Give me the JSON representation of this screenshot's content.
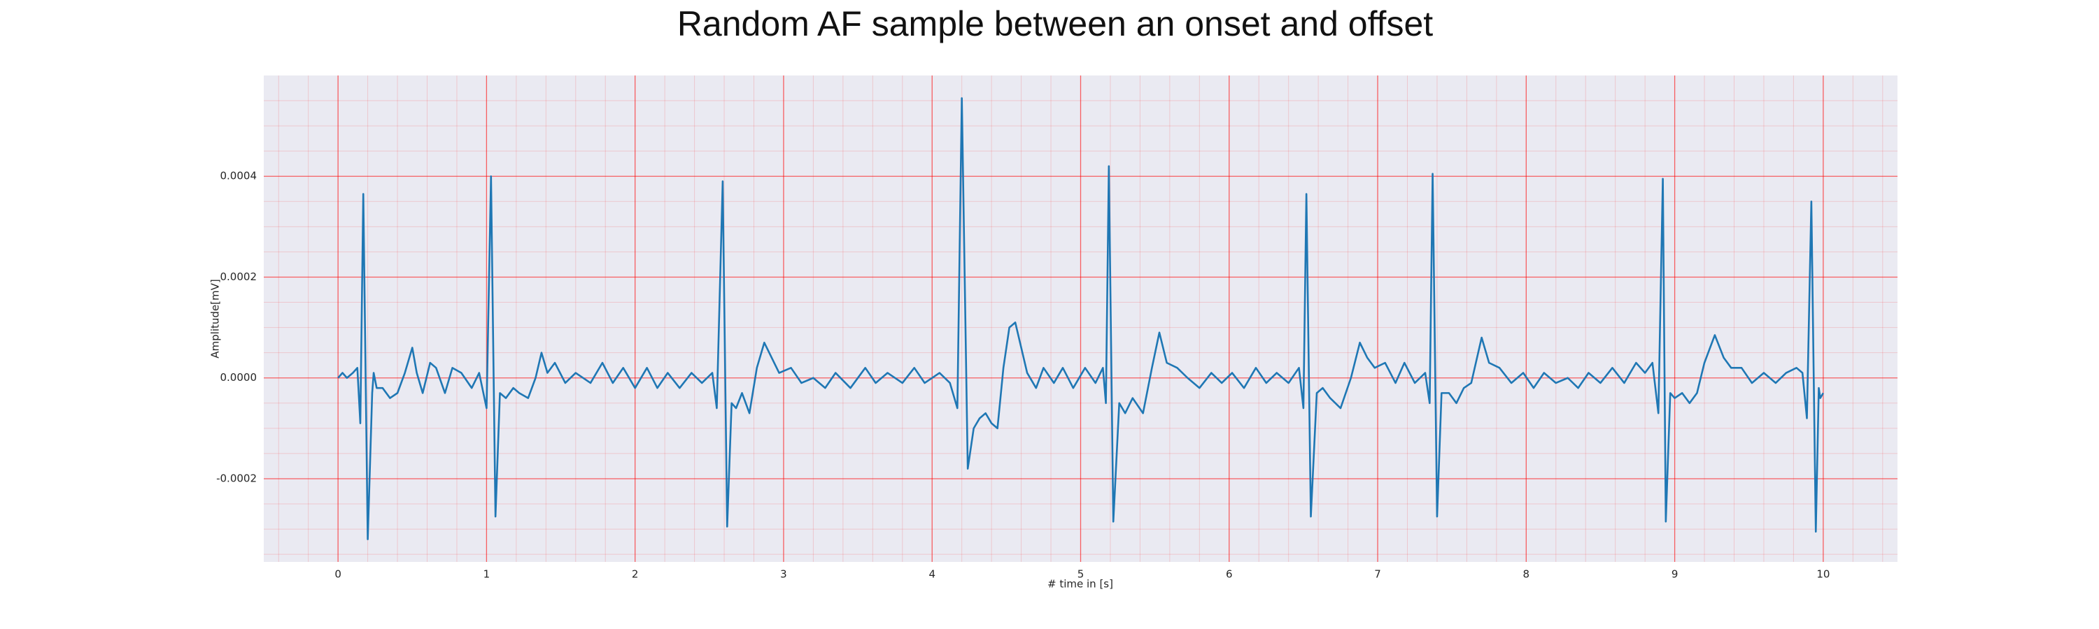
{
  "chart_data": {
    "type": "line",
    "title": "Random AF sample between an onset and offset",
    "xlabel": "# time in [s]",
    "ylabel": "Amplitude[mV]",
    "color": "#1f77b4",
    "grid": true,
    "grid_color": "#ff0000",
    "minor_grid": {
      "x": 5,
      "y": 4
    },
    "xlim": [
      -0.5,
      10.5
    ],
    "ylim": [
      -0.000365,
      0.0006
    ],
    "xticks": [
      0,
      1,
      2,
      3,
      4,
      5,
      6,
      7,
      8,
      9,
      10
    ],
    "yticks": [
      -0.0002,
      {
        "value": 0,
        "label": "0.0000"
      },
      0.0002,
      0.0004
    ],
    "x": [
      0.0,
      0.03,
      0.06,
      0.1,
      0.13,
      0.15,
      0.17,
      0.2,
      0.23,
      0.24,
      0.26,
      0.3,
      0.35,
      0.4,
      0.45,
      0.5,
      0.53,
      0.57,
      0.62,
      0.66,
      0.72,
      0.77,
      0.83,
      0.9,
      0.95,
      1.0,
      1.03,
      1.06,
      1.09,
      1.13,
      1.18,
      1.22,
      1.28,
      1.33,
      1.37,
      1.41,
      1.46,
      1.53,
      1.6,
      1.7,
      1.78,
      1.85,
      1.92,
      2.0,
      2.08,
      2.15,
      2.22,
      2.3,
      2.38,
      2.45,
      2.52,
      2.55,
      2.59,
      2.62,
      2.65,
      2.68,
      2.72,
      2.77,
      2.82,
      2.87,
      2.92,
      2.97,
      3.05,
      3.12,
      3.2,
      3.28,
      3.35,
      3.45,
      3.55,
      3.62,
      3.7,
      3.8,
      3.88,
      3.95,
      4.05,
      4.12,
      4.17,
      4.2,
      4.24,
      4.28,
      4.32,
      4.36,
      4.4,
      4.44,
      4.48,
      4.52,
      4.56,
      4.6,
      4.64,
      4.7,
      4.75,
      4.82,
      4.88,
      4.95,
      5.03,
      5.1,
      5.15,
      5.17,
      5.19,
      5.22,
      5.26,
      5.3,
      5.35,
      5.42,
      5.48,
      5.53,
      5.58,
      5.65,
      5.72,
      5.8,
      5.88,
      5.95,
      6.02,
      6.1,
      6.18,
      6.25,
      6.32,
      6.4,
      6.47,
      6.5,
      6.52,
      6.55,
      6.59,
      6.63,
      6.68,
      6.75,
      6.82,
      6.88,
      6.93,
      6.98,
      7.05,
      7.12,
      7.18,
      7.25,
      7.32,
      7.35,
      7.37,
      7.4,
      7.43,
      7.48,
      7.53,
      7.58,
      7.63,
      7.7,
      7.75,
      7.82,
      7.9,
      7.98,
      8.05,
      8.12,
      8.2,
      8.28,
      8.35,
      8.42,
      8.5,
      8.58,
      8.66,
      8.74,
      8.8,
      8.85,
      8.89,
      8.92,
      8.94,
      8.97,
      9.0,
      9.05,
      9.1,
      9.15,
      9.2,
      9.27,
      9.33,
      9.38,
      9.45,
      9.52,
      9.6,
      9.68,
      9.75,
      9.82,
      9.86,
      9.89,
      9.92,
      9.95,
      9.97,
      9.98,
      10.0
    ],
    "values": [
      0,
      1e-05,
      0,
      1e-05,
      2e-05,
      -9e-05,
      0.000365,
      -0.00032,
      -3e-05,
      1e-05,
      -2e-05,
      -2e-05,
      -4e-05,
      -3e-05,
      1e-05,
      6e-05,
      1e-05,
      -3e-05,
      3e-05,
      2e-05,
      -3e-05,
      2e-05,
      1e-05,
      -2e-05,
      1e-05,
      -6e-05,
      0.0004,
      -0.000275,
      -3e-05,
      -4e-05,
      -2e-05,
      -3e-05,
      -4e-05,
      0,
      5e-05,
      1e-05,
      3e-05,
      -1e-05,
      1e-05,
      -1e-05,
      3e-05,
      -1e-05,
      2e-05,
      -2e-05,
      2e-05,
      -2e-05,
      1e-05,
      -2e-05,
      1e-05,
      -1e-05,
      1e-05,
      -6e-05,
      0.00039,
      -0.000295,
      -5e-05,
      -6e-05,
      -3e-05,
      -7e-05,
      2e-05,
      7e-05,
      4e-05,
      1e-05,
      2e-05,
      -1e-05,
      0,
      -2e-05,
      1e-05,
      -2e-05,
      2e-05,
      -1e-05,
      1e-05,
      -1e-05,
      2e-05,
      -1e-05,
      1e-05,
      -1e-05,
      -6e-05,
      0.000555,
      -0.00018,
      -0.0001,
      -8e-05,
      -7e-05,
      -9e-05,
      -0.0001,
      2e-05,
      0.0001,
      0.00011,
      6e-05,
      1e-05,
      -2e-05,
      2e-05,
      -1e-05,
      2e-05,
      -2e-05,
      2e-05,
      -1e-05,
      2e-05,
      -5e-05,
      0.00042,
      -0.000285,
      -5e-05,
      -7e-05,
      -4e-05,
      -7e-05,
      2e-05,
      9e-05,
      3e-05,
      2e-05,
      0,
      -2e-05,
      1e-05,
      -1e-05,
      1e-05,
      -2e-05,
      2e-05,
      -1e-05,
      1e-05,
      -1e-05,
      2e-05,
      -6e-05,
      0.000365,
      -0.000275,
      -3e-05,
      -2e-05,
      -4e-05,
      -6e-05,
      0,
      7e-05,
      4e-05,
      2e-05,
      3e-05,
      -1e-05,
      3e-05,
      -1e-05,
      1e-05,
      -5e-05,
      0.000405,
      -0.000275,
      -3e-05,
      -3e-05,
      -5e-05,
      -2e-05,
      -1e-05,
      8e-05,
      3e-05,
      2e-05,
      -1e-05,
      1e-05,
      -2e-05,
      1e-05,
      -1e-05,
      0,
      -2e-05,
      1e-05,
      -1e-05,
      2e-05,
      -1e-05,
      3e-05,
      1e-05,
      3e-05,
      -7e-05,
      0.000395,
      -0.000285,
      -3e-05,
      -4e-05,
      -3e-05,
      -5e-05,
      -3e-05,
      3e-05,
      8.5e-05,
      4e-05,
      2e-05,
      2e-05,
      -1e-05,
      1e-05,
      -1e-05,
      1e-05,
      2e-05,
      1e-05,
      -8e-05,
      0.00035,
      -0.000305,
      -2e-05,
      -4e-05,
      -3e-05
    ]
  }
}
